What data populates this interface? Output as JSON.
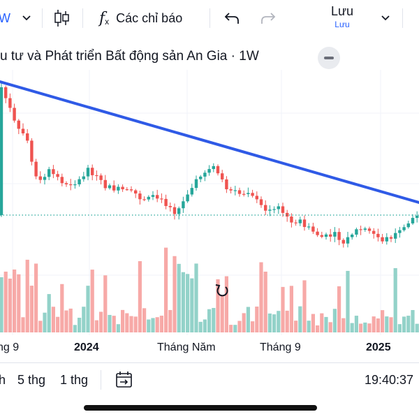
{
  "toolbar": {
    "interval_label": "W",
    "indicators_label": "Các chỉ báo",
    "save_label": "Lưu",
    "save_sub_label": "Lưu"
  },
  "chart_title": "u tư và Phát triển Bất động sản An Gia · 1W",
  "x_axis_labels": [
    {
      "text": "ng 9",
      "bold": false
    },
    {
      "text": "2024",
      "bold": true
    },
    {
      "text": "Tháng Năm",
      "bold": false
    },
    {
      "text": "Tháng 9",
      "bold": false
    },
    {
      "text": "2025",
      "bold": true
    }
  ],
  "bottom_bar": {
    "range_1": "h",
    "range_2": "5 thg",
    "range_3": "1 thg",
    "time": "19:40:37"
  },
  "colors": {
    "up": "#26a69a",
    "down": "#ef5350",
    "up_volume": "#93d2c9",
    "down_volume": "#f7a9a7",
    "trendline": "#2f5ae6",
    "price_line": "#26a69a"
  }
}
